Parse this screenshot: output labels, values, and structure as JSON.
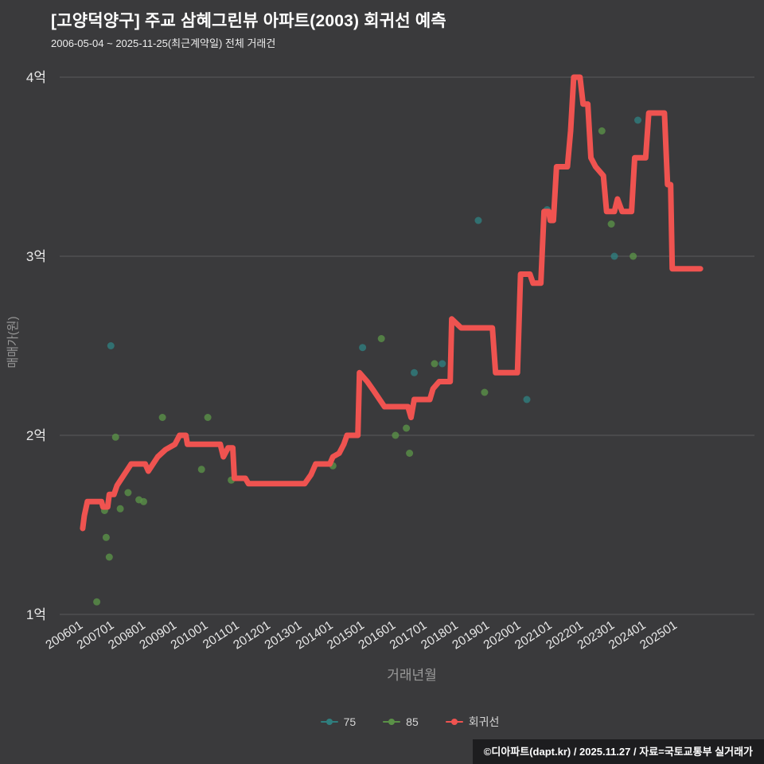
{
  "page": {
    "title": "[고양덕양구] 주교 삼혜그린뷰 아파트(2003) 회귀선 예측",
    "subtitle": "2006-05-04 ~ 2025-11-25(최근계약일) 전체 거래건",
    "footer": "©디아파트(dapt.kr) / 2025.11.27 / 자료=국토교통부 실거래가"
  },
  "chart_data": {
    "type": "scatter",
    "title": "[고양덕양구] 주교 삼혜그린뷰 아파트(2003) 회귀선 예측",
    "subtitle": "2006-05-04 ~ 2025-11-25(최근계약일) 전체 거래건",
    "xlabel": "거래년월",
    "ylabel": "매매가(원)",
    "legend_position": "bottom",
    "grid": "horizontal-only",
    "xlim": [
      2005.4,
      2027.6
    ],
    "ylim_label": [
      "1억",
      "4억"
    ],
    "colors": {
      "background": "#3a3a3c",
      "grid": "#5b5b5d",
      "tick_label": "#e8e8e8",
      "axis_title": "#9a9a9a"
    },
    "x_ticks": [
      "200601",
      "200701",
      "200801",
      "200901",
      "201001",
      "201101",
      "201201",
      "201301",
      "201401",
      "201501",
      "201601",
      "201701",
      "201801",
      "201901",
      "202001",
      "202101",
      "202201",
      "202301",
      "202401",
      "202501"
    ],
    "y_ticks": [
      {
        "value": 1,
        "label": "1억"
      },
      {
        "value": 2,
        "label": "2억"
      },
      {
        "value": 3,
        "label": "3억"
      },
      {
        "value": 4,
        "label": "4억"
      }
    ],
    "series": [
      {
        "name": "75",
        "type": "scatter",
        "color": "#2f7e7e",
        "points": [
          [
            2007.05,
            2.5
          ],
          [
            2015.1,
            2.49
          ],
          [
            2016.75,
            2.35
          ],
          [
            2017.65,
            2.4
          ],
          [
            2018.8,
            3.2
          ],
          [
            2020.35,
            2.2
          ],
          [
            2021.0,
            3.26
          ],
          [
            2023.15,
            3.0
          ],
          [
            2023.9,
            3.76
          ]
        ]
      },
      {
        "name": "85",
        "type": "scatter",
        "color": "#5a9147",
        "points": [
          [
            2006.6,
            1.07
          ],
          [
            2006.85,
            1.58
          ],
          [
            2006.9,
            1.43
          ],
          [
            2007.0,
            1.32
          ],
          [
            2007.2,
            1.99
          ],
          [
            2007.35,
            1.59
          ],
          [
            2007.6,
            1.68
          ],
          [
            2007.95,
            1.64
          ],
          [
            2008.1,
            1.63
          ],
          [
            2008.7,
            2.1
          ],
          [
            2009.95,
            1.81
          ],
          [
            2010.15,
            2.1
          ],
          [
            2010.9,
            1.75
          ],
          [
            2014.15,
            1.83
          ],
          [
            2015.7,
            2.54
          ],
          [
            2016.15,
            2.0
          ],
          [
            2016.5,
            2.04
          ],
          [
            2016.6,
            1.9
          ],
          [
            2017.4,
            2.4
          ],
          [
            2019.0,
            2.24
          ],
          [
            2022.75,
            3.7
          ],
          [
            2023.05,
            3.18
          ],
          [
            2023.75,
            3.0
          ]
        ]
      },
      {
        "name": "회귀선",
        "type": "line",
        "color": "#ef5350",
        "width": 7,
        "points": [
          [
            2006.15,
            1.48
          ],
          [
            2006.2,
            1.55
          ],
          [
            2006.3,
            1.63
          ],
          [
            2006.75,
            1.63
          ],
          [
            2006.8,
            1.6
          ],
          [
            2006.95,
            1.6
          ],
          [
            2007.0,
            1.67
          ],
          [
            2007.15,
            1.67
          ],
          [
            2007.25,
            1.72
          ],
          [
            2007.4,
            1.76
          ],
          [
            2007.55,
            1.8
          ],
          [
            2007.7,
            1.84
          ],
          [
            2008.15,
            1.84
          ],
          [
            2008.25,
            1.8
          ],
          [
            2008.4,
            1.84
          ],
          [
            2008.55,
            1.88
          ],
          [
            2008.8,
            1.92
          ],
          [
            2009.1,
            1.95
          ],
          [
            2009.25,
            2.0
          ],
          [
            2009.45,
            2.0
          ],
          [
            2009.5,
            1.95
          ],
          [
            2010.55,
            1.95
          ],
          [
            2010.65,
            1.88
          ],
          [
            2010.8,
            1.93
          ],
          [
            2010.95,
            1.93
          ],
          [
            2011.0,
            1.76
          ],
          [
            2011.35,
            1.76
          ],
          [
            2011.45,
            1.73
          ],
          [
            2013.25,
            1.73
          ],
          [
            2013.45,
            1.78
          ],
          [
            2013.6,
            1.84
          ],
          [
            2014.05,
            1.84
          ],
          [
            2014.15,
            1.88
          ],
          [
            2014.35,
            1.9
          ],
          [
            2014.5,
            1.95
          ],
          [
            2014.6,
            2.0
          ],
          [
            2014.95,
            2.0
          ],
          [
            2015.0,
            2.35
          ],
          [
            2015.25,
            2.3
          ],
          [
            2015.45,
            2.25
          ],
          [
            2015.8,
            2.16
          ],
          [
            2016.55,
            2.16
          ],
          [
            2016.65,
            2.1
          ],
          [
            2016.75,
            2.2
          ],
          [
            2017.25,
            2.2
          ],
          [
            2017.35,
            2.26
          ],
          [
            2017.55,
            2.3
          ],
          [
            2017.9,
            2.3
          ],
          [
            2017.95,
            2.65
          ],
          [
            2018.25,
            2.6
          ],
          [
            2019.25,
            2.6
          ],
          [
            2019.35,
            2.35
          ],
          [
            2020.05,
            2.35
          ],
          [
            2020.15,
            2.9
          ],
          [
            2020.45,
            2.9
          ],
          [
            2020.55,
            2.85
          ],
          [
            2020.8,
            2.85
          ],
          [
            2020.9,
            3.25
          ],
          [
            2021.05,
            3.25
          ],
          [
            2021.1,
            3.2
          ],
          [
            2021.2,
            3.2
          ],
          [
            2021.3,
            3.5
          ],
          [
            2021.65,
            3.5
          ],
          [
            2021.75,
            3.7
          ],
          [
            2021.85,
            4.0
          ],
          [
            2022.05,
            4.0
          ],
          [
            2022.15,
            3.85
          ],
          [
            2022.3,
            3.85
          ],
          [
            2022.4,
            3.55
          ],
          [
            2022.55,
            3.5
          ],
          [
            2022.8,
            3.45
          ],
          [
            2022.9,
            3.25
          ],
          [
            2023.15,
            3.25
          ],
          [
            2023.25,
            3.32
          ],
          [
            2023.4,
            3.25
          ],
          [
            2023.7,
            3.25
          ],
          [
            2023.8,
            3.55
          ],
          [
            2024.15,
            3.55
          ],
          [
            2024.25,
            3.8
          ],
          [
            2024.75,
            3.8
          ],
          [
            2024.85,
            3.4
          ],
          [
            2024.95,
            3.4
          ],
          [
            2025.0,
            2.93
          ],
          [
            2025.9,
            2.93
          ]
        ]
      }
    ]
  }
}
